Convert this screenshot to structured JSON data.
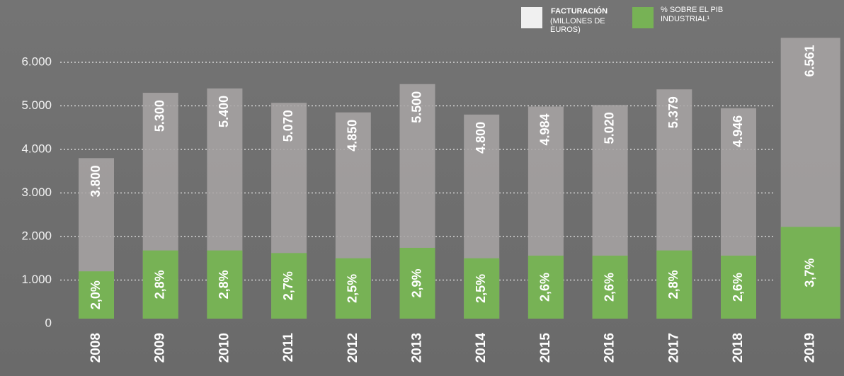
{
  "chart_data": {
    "type": "bar",
    "categories": [
      "2008",
      "2009",
      "2010",
      "2011",
      "2012",
      "2013",
      "2014",
      "2015",
      "2016",
      "2017",
      "2018",
      "2019"
    ],
    "series": [
      {
        "name": "FACTURACIÓN",
        "unit": "(MILLONES DE EUROS)",
        "color": "#a8a4a4",
        "values": [
          3800,
          5300,
          5400,
          5070,
          4850,
          5500,
          4800,
          4984,
          5020,
          5379,
          4946,
          6561
        ],
        "value_labels": [
          "3.800",
          "5.300",
          "5.400",
          "5.070",
          "4.850",
          "5.500",
          "4.800",
          "4.984",
          "5.020",
          "5.379",
          "4.946",
          "6.561"
        ]
      },
      {
        "name": "% SOBRE EL PIB INDUSTRIAL¹",
        "color": "#77b255",
        "axis": "y2",
        "values": [
          2.0,
          2.8,
          2.8,
          2.7,
          2.5,
          2.9,
          2.5,
          2.6,
          2.6,
          2.8,
          2.6,
          3.7
        ],
        "value_labels": [
          "2,0%",
          "2,8%",
          "2,8%",
          "2,7%",
          "2,5%",
          "2,9%",
          "2,5%",
          "2,6%",
          "2,6%",
          "2,8%",
          "2,6%",
          "3,7%"
        ]
      }
    ],
    "ylim": [
      0,
      6000
    ],
    "yticks": [
      0,
      {
        "value": 1000,
        "label": "1.000"
      },
      {
        "value": 2000,
        "label": "2.000"
      },
      {
        "value": 3000,
        "label": "3.000"
      },
      {
        "value": 4000,
        "label": "4.000"
      },
      {
        "value": 5000,
        "label": "5.000"
      },
      {
        "value": 6000,
        "label": "6.000"
      }
    ],
    "y2lim": [
      0,
      10
    ],
    "grid": true
  }
}
